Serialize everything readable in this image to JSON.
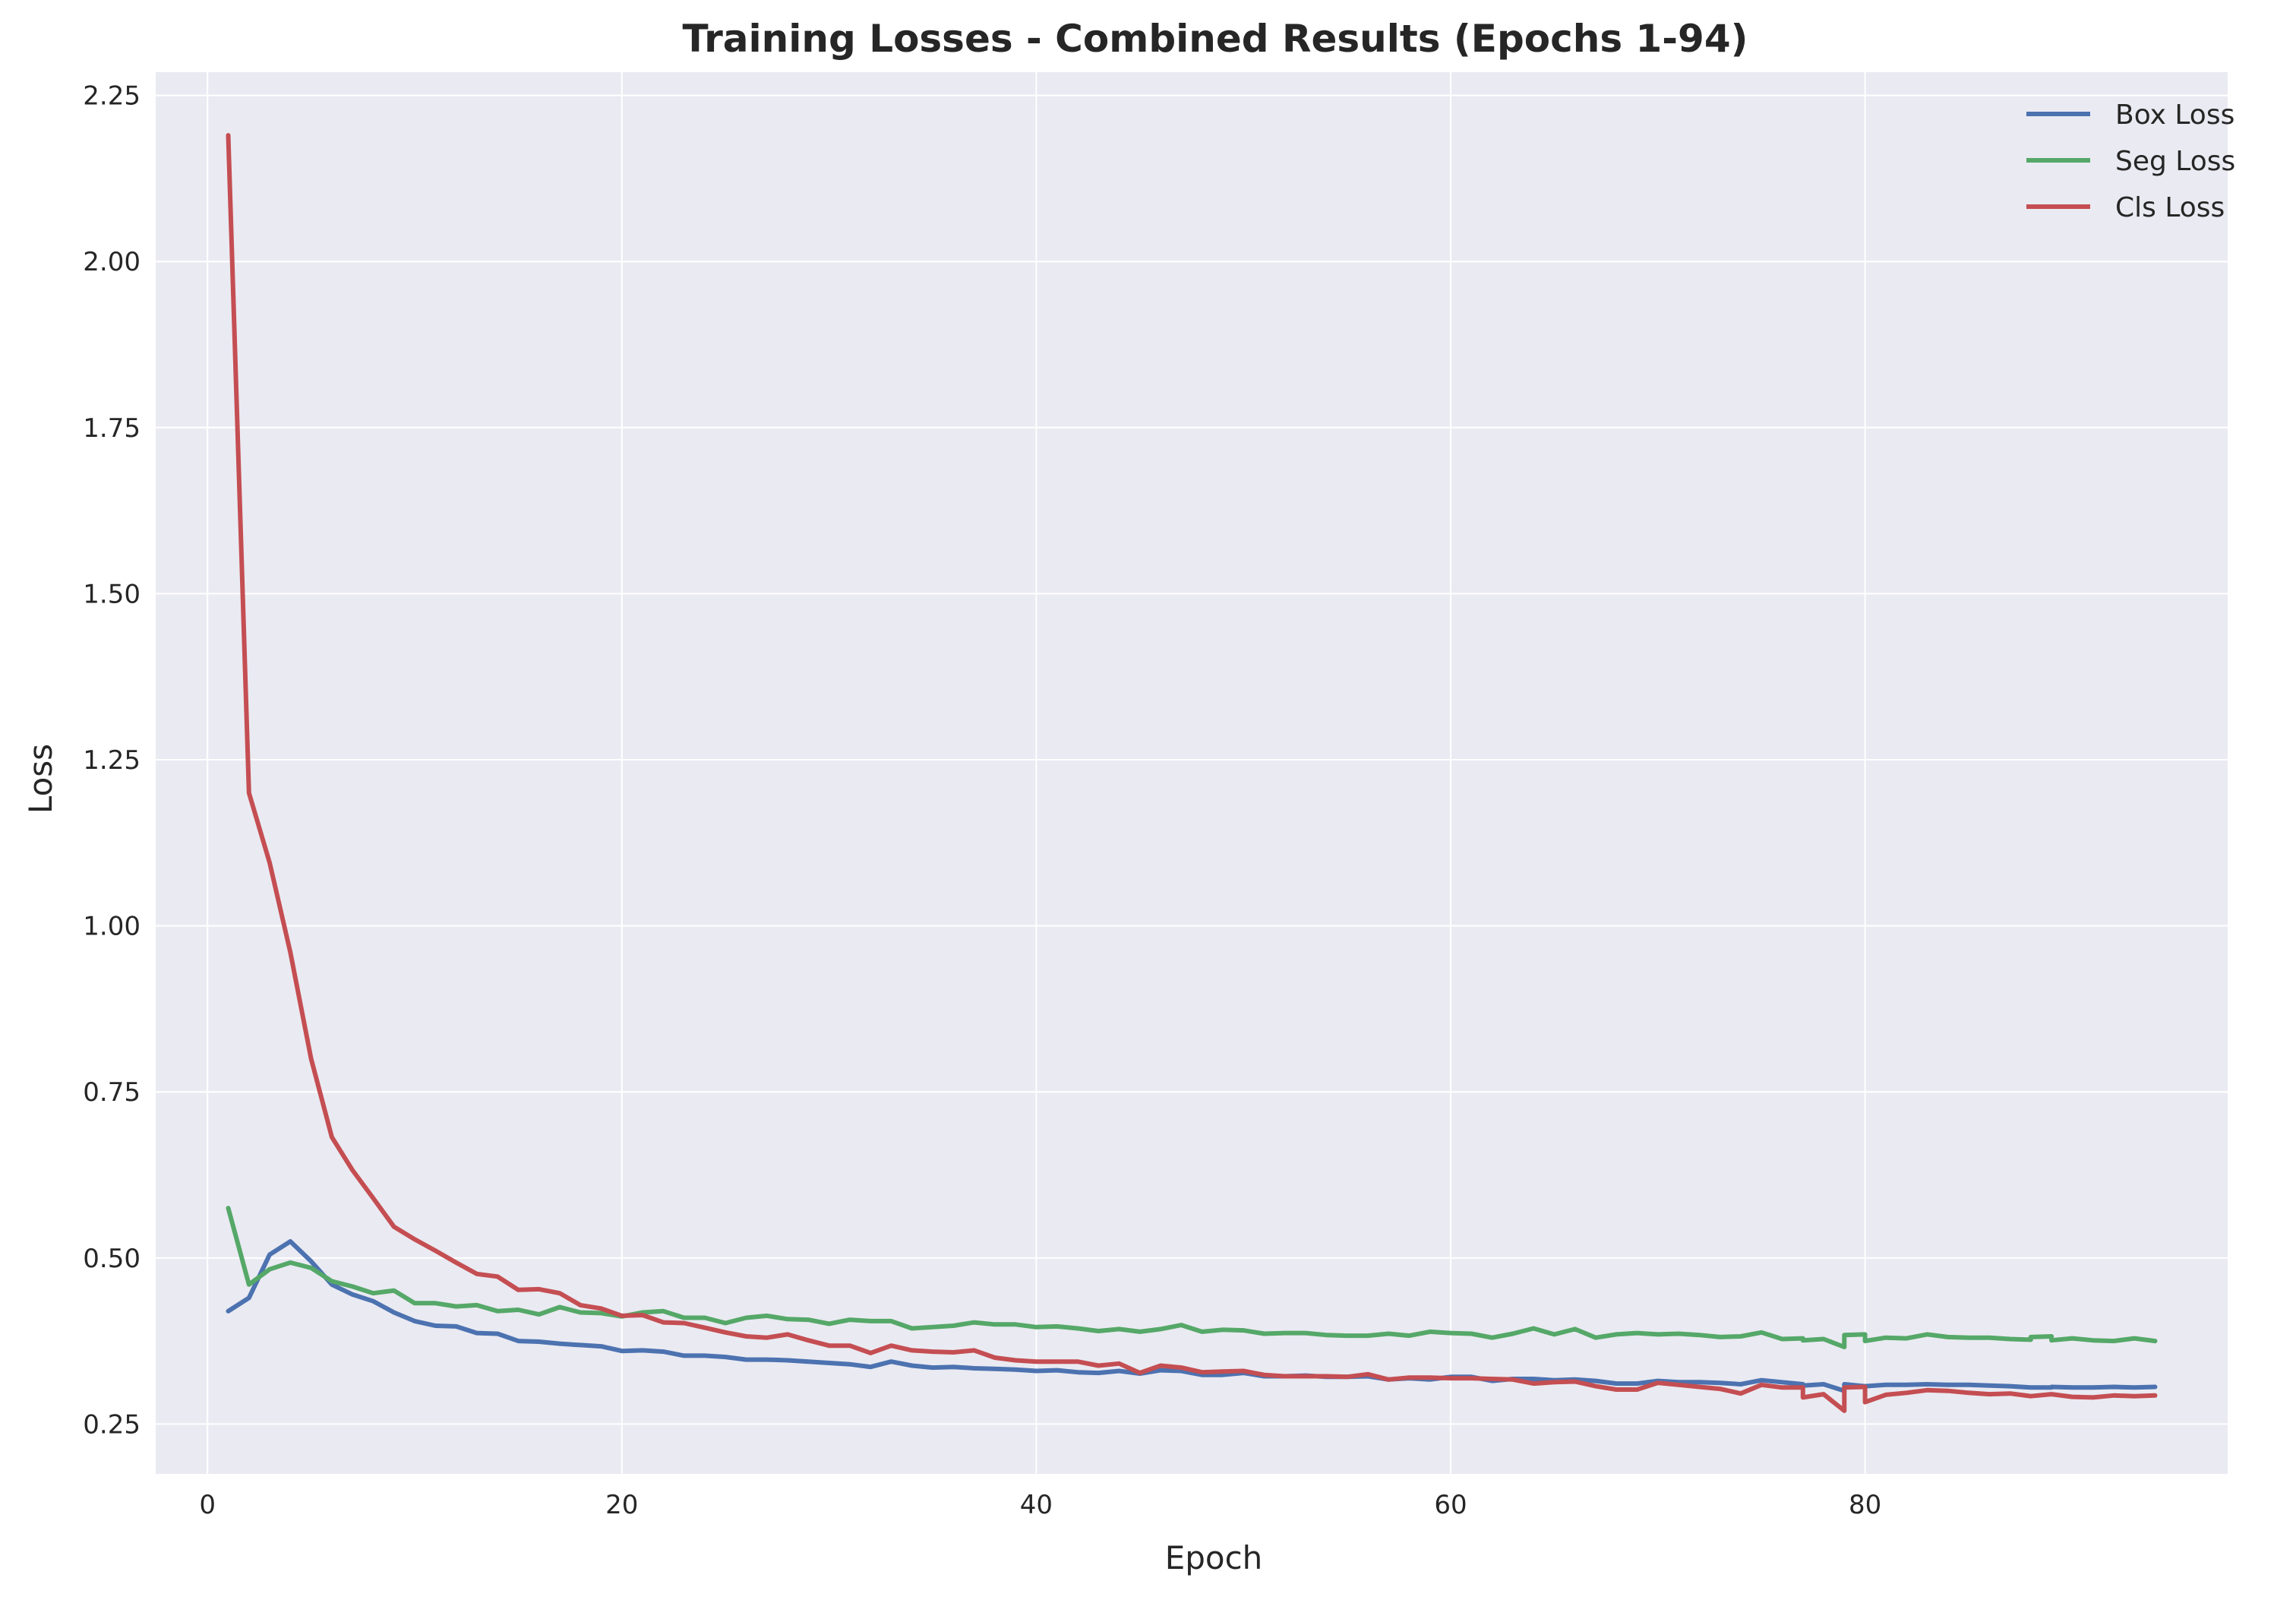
{
  "chart_data": {
    "type": "line",
    "title": "Training Losses - Combined Results (Epochs 1-94)",
    "xlabel": "Epoch",
    "ylabel": "Loss",
    "xlim": [
      -2.5,
      97.5
    ],
    "ylim": [
      0.175,
      2.285
    ],
    "xticks": [
      0,
      20,
      40,
      60,
      80
    ],
    "yticks": [
      0.25,
      0.5,
      0.75,
      1.0,
      1.25,
      1.5,
      1.75,
      2.0,
      2.25
    ],
    "xtick_labels": [
      "0",
      "20",
      "40",
      "60",
      "80"
    ],
    "ytick_labels": [
      "0.25",
      "0.50",
      "0.75",
      "1.00",
      "1.25",
      "1.50",
      "1.75",
      "2.00",
      "2.25"
    ],
    "grid": true,
    "legend_position": "top-right",
    "background": "#eaeaf2",
    "series": [
      {
        "name": "Box Loss",
        "color": "#4c72b0",
        "points": [
          [
            1,
            0.42
          ],
          [
            2,
            0.44
          ],
          [
            3,
            0.505
          ],
          [
            4,
            0.525
          ],
          [
            5,
            0.495
          ],
          [
            6,
            0.46
          ],
          [
            7,
            0.445
          ],
          [
            8,
            0.435
          ],
          [
            9,
            0.418
          ],
          [
            10,
            0.405
          ],
          [
            11,
            0.398
          ],
          [
            12,
            0.397
          ],
          [
            13,
            0.387
          ],
          [
            14,
            0.386
          ],
          [
            15,
            0.375
          ],
          [
            16,
            0.374
          ],
          [
            17,
            0.371
          ],
          [
            18,
            0.369
          ],
          [
            19,
            0.367
          ],
          [
            20,
            0.36
          ],
          [
            21,
            0.361
          ],
          [
            22,
            0.359
          ],
          [
            23,
            0.353
          ],
          [
            24,
            0.353
          ],
          [
            25,
            0.351
          ],
          [
            26,
            0.347
          ],
          [
            27,
            0.347
          ],
          [
            28,
            0.346
          ],
          [
            29,
            0.344
          ],
          [
            30,
            0.342
          ],
          [
            31,
            0.34
          ],
          [
            32,
            0.336
          ],
          [
            33,
            0.344
          ],
          [
            34,
            0.338
          ],
          [
            35,
            0.335
          ],
          [
            36,
            0.336
          ],
          [
            37,
            0.334
          ],
          [
            38,
            0.333
          ],
          [
            39,
            0.332
          ],
          [
            40,
            0.33
          ],
          [
            41,
            0.331
          ],
          [
            42,
            0.328
          ],
          [
            43,
            0.327
          ],
          [
            44,
            0.33
          ],
          [
            45,
            0.326
          ],
          [
            46,
            0.331
          ],
          [
            47,
            0.33
          ],
          [
            48,
            0.324
          ],
          [
            49,
            0.324
          ],
          [
            50,
            0.327
          ],
          [
            51,
            0.322
          ],
          [
            52,
            0.322
          ],
          [
            53,
            0.323
          ],
          [
            54,
            0.321
          ],
          [
            55,
            0.321
          ],
          [
            56,
            0.322
          ],
          [
            57,
            0.317
          ],
          [
            58,
            0.319
          ],
          [
            59,
            0.317
          ],
          [
            60,
            0.321
          ],
          [
            61,
            0.321
          ],
          [
            62,
            0.315
          ],
          [
            63,
            0.318
          ],
          [
            64,
            0.318
          ],
          [
            65,
            0.316
          ],
          [
            66,
            0.317
          ],
          [
            67,
            0.315
          ],
          [
            68,
            0.311
          ],
          [
            69,
            0.311
          ],
          [
            70,
            0.315
          ],
          [
            71,
            0.313
          ],
          [
            72,
            0.313
          ],
          [
            73,
            0.312
          ],
          [
            74,
            0.31
          ],
          [
            75,
            0.316
          ],
          [
            76,
            0.313
          ],
          [
            77,
            0.31
          ],
          [
            77,
            0.308
          ],
          [
            78,
            0.31
          ],
          [
            79,
            0.3
          ],
          [
            79,
            0.31
          ],
          [
            80,
            0.307
          ],
          [
            81,
            0.309
          ],
          [
            82,
            0.309
          ],
          [
            83,
            0.31
          ],
          [
            84,
            0.309
          ],
          [
            85,
            0.309
          ],
          [
            86,
            0.308
          ],
          [
            87,
            0.307
          ],
          [
            88,
            0.305
          ],
          [
            89,
            0.305
          ],
          [
            89,
            0.306
          ],
          [
            90,
            0.305
          ],
          [
            91,
            0.305
          ],
          [
            92,
            0.306
          ],
          [
            93,
            0.305
          ],
          [
            94,
            0.306
          ]
        ]
      },
      {
        "name": "Seg Loss",
        "color": "#55a868",
        "points": [
          [
            1,
            0.575
          ],
          [
            2,
            0.46
          ],
          [
            3,
            0.483
          ],
          [
            4,
            0.493
          ],
          [
            5,
            0.485
          ],
          [
            6,
            0.465
          ],
          [
            7,
            0.457
          ],
          [
            8,
            0.447
          ],
          [
            9,
            0.451
          ],
          [
            10,
            0.432
          ],
          [
            11,
            0.432
          ],
          [
            12,
            0.427
          ],
          [
            13,
            0.429
          ],
          [
            14,
            0.42
          ],
          [
            15,
            0.422
          ],
          [
            16,
            0.415
          ],
          [
            17,
            0.426
          ],
          [
            18,
            0.418
          ],
          [
            19,
            0.417
          ],
          [
            20,
            0.412
          ],
          [
            21,
            0.418
          ],
          [
            22,
            0.42
          ],
          [
            23,
            0.41
          ],
          [
            24,
            0.41
          ],
          [
            25,
            0.402
          ],
          [
            26,
            0.41
          ],
          [
            27,
            0.413
          ],
          [
            28,
            0.408
          ],
          [
            29,
            0.407
          ],
          [
            30,
            0.401
          ],
          [
            31,
            0.407
          ],
          [
            32,
            0.405
          ],
          [
            33,
            0.405
          ],
          [
            34,
            0.394
          ],
          [
            35,
            0.396
          ],
          [
            36,
            0.398
          ],
          [
            37,
            0.403
          ],
          [
            38,
            0.4
          ],
          [
            39,
            0.4
          ],
          [
            40,
            0.396
          ],
          [
            41,
            0.397
          ],
          [
            42,
            0.394
          ],
          [
            43,
            0.39
          ],
          [
            44,
            0.393
          ],
          [
            45,
            0.389
          ],
          [
            46,
            0.393
          ],
          [
            47,
            0.399
          ],
          [
            48,
            0.389
          ],
          [
            49,
            0.392
          ],
          [
            50,
            0.391
          ],
          [
            51,
            0.386
          ],
          [
            52,
            0.387
          ],
          [
            53,
            0.387
          ],
          [
            54,
            0.384
          ],
          [
            55,
            0.383
          ],
          [
            56,
            0.383
          ],
          [
            57,
            0.386
          ],
          [
            58,
            0.383
          ],
          [
            59,
            0.389
          ],
          [
            60,
            0.387
          ],
          [
            61,
            0.386
          ],
          [
            62,
            0.38
          ],
          [
            63,
            0.386
          ],
          [
            64,
            0.394
          ],
          [
            65,
            0.385
          ],
          [
            66,
            0.393
          ],
          [
            67,
            0.38
          ],
          [
            68,
            0.385
          ],
          [
            69,
            0.387
          ],
          [
            70,
            0.385
          ],
          [
            71,
            0.386
          ],
          [
            72,
            0.384
          ],
          [
            73,
            0.381
          ],
          [
            74,
            0.382
          ],
          [
            75,
            0.388
          ],
          [
            76,
            0.378
          ],
          [
            77,
            0.379
          ],
          [
            77,
            0.376
          ],
          [
            78,
            0.378
          ],
          [
            79,
            0.366
          ],
          [
            79,
            0.384
          ],
          [
            80,
            0.385
          ],
          [
            80,
            0.375
          ],
          [
            81,
            0.38
          ],
          [
            82,
            0.379
          ],
          [
            83,
            0.385
          ],
          [
            84,
            0.381
          ],
          [
            85,
            0.38
          ],
          [
            86,
            0.38
          ],
          [
            87,
            0.378
          ],
          [
            88,
            0.377
          ],
          [
            88,
            0.381
          ],
          [
            89,
            0.382
          ],
          [
            89,
            0.376
          ],
          [
            90,
            0.379
          ],
          [
            91,
            0.376
          ],
          [
            92,
            0.375
          ],
          [
            93,
            0.379
          ],
          [
            94,
            0.375
          ]
        ]
      },
      {
        "name": "Cls Loss",
        "color": "#c44e52",
        "points": [
          [
            1,
            2.19
          ],
          [
            2,
            1.2
          ],
          [
            3,
            1.095
          ],
          [
            4,
            0.96
          ],
          [
            5,
            0.8
          ],
          [
            6,
            0.682
          ],
          [
            7,
            0.632
          ],
          [
            8,
            0.59
          ],
          [
            9,
            0.547
          ],
          [
            10,
            0.528
          ],
          [
            11,
            0.511
          ],
          [
            12,
            0.493
          ],
          [
            13,
            0.476
          ],
          [
            14,
            0.472
          ],
          [
            15,
            0.452
          ],
          [
            16,
            0.453
          ],
          [
            17,
            0.447
          ],
          [
            18,
            0.429
          ],
          [
            19,
            0.424
          ],
          [
            20,
            0.413
          ],
          [
            21,
            0.414
          ],
          [
            22,
            0.403
          ],
          [
            23,
            0.402
          ],
          [
            24,
            0.395
          ],
          [
            25,
            0.388
          ],
          [
            26,
            0.382
          ],
          [
            27,
            0.38
          ],
          [
            28,
            0.385
          ],
          [
            29,
            0.376
          ],
          [
            30,
            0.368
          ],
          [
            31,
            0.368
          ],
          [
            32,
            0.357
          ],
          [
            33,
            0.368
          ],
          [
            34,
            0.361
          ],
          [
            35,
            0.359
          ],
          [
            36,
            0.358
          ],
          [
            37,
            0.361
          ],
          [
            38,
            0.35
          ],
          [
            39,
            0.346
          ],
          [
            40,
            0.344
          ],
          [
            41,
            0.344
          ],
          [
            42,
            0.344
          ],
          [
            43,
            0.338
          ],
          [
            44,
            0.341
          ],
          [
            45,
            0.327
          ],
          [
            46,
            0.338
          ],
          [
            47,
            0.335
          ],
          [
            48,
            0.328
          ],
          [
            49,
            0.329
          ],
          [
            50,
            0.33
          ],
          [
            51,
            0.324
          ],
          [
            52,
            0.322
          ],
          [
            53,
            0.322
          ],
          [
            54,
            0.322
          ],
          [
            55,
            0.321
          ],
          [
            56,
            0.325
          ],
          [
            57,
            0.317
          ],
          [
            58,
            0.32
          ],
          [
            59,
            0.32
          ],
          [
            60,
            0.319
          ],
          [
            61,
            0.319
          ],
          [
            62,
            0.318
          ],
          [
            63,
            0.317
          ],
          [
            64,
            0.311
          ],
          [
            65,
            0.313
          ],
          [
            66,
            0.314
          ],
          [
            67,
            0.307
          ],
          [
            68,
            0.302
          ],
          [
            69,
            0.302
          ],
          [
            70,
            0.312
          ],
          [
            71,
            0.309
          ],
          [
            72,
            0.306
          ],
          [
            73,
            0.303
          ],
          [
            74,
            0.296
          ],
          [
            75,
            0.309
          ],
          [
            76,
            0.305
          ],
          [
            77,
            0.305
          ],
          [
            77,
            0.29
          ],
          [
            78,
            0.295
          ],
          [
            79,
            0.27
          ],
          [
            79,
            0.305
          ],
          [
            80,
            0.306
          ],
          [
            80,
            0.283
          ],
          [
            81,
            0.294
          ],
          [
            82,
            0.297
          ],
          [
            83,
            0.301
          ],
          [
            84,
            0.3
          ],
          [
            85,
            0.297
          ],
          [
            86,
            0.295
          ],
          [
            87,
            0.296
          ],
          [
            88,
            0.292
          ],
          [
            89,
            0.295
          ],
          [
            90,
            0.291
          ],
          [
            91,
            0.29
          ],
          [
            92,
            0.293
          ],
          [
            93,
            0.292
          ],
          [
            94,
            0.293
          ]
        ]
      }
    ]
  }
}
